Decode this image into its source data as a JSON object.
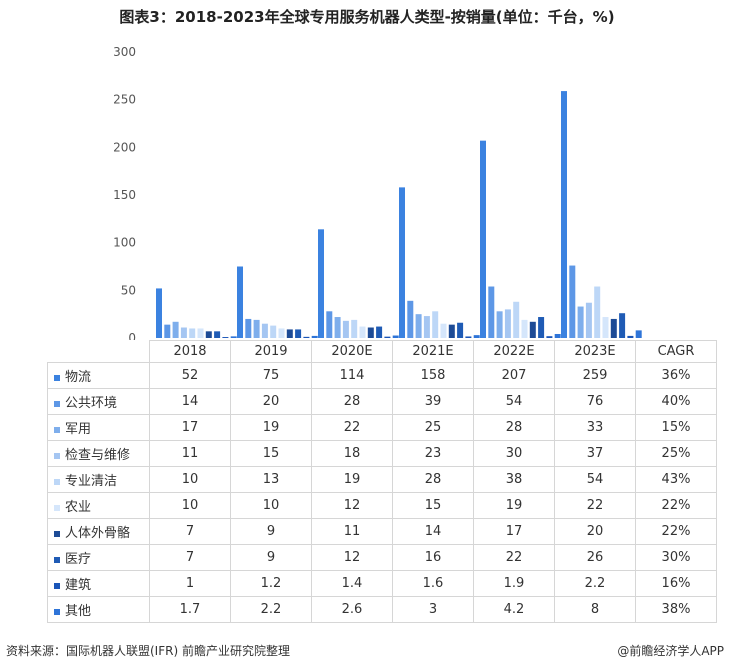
{
  "title": "图表3：2018-2023年全球专用服务机器人类型-按销量(单位：千台，%)",
  "footer": {
    "source": "资料来源：国际机器人联盟(IFR)  前瞻产业研究院整理",
    "credit": "@前瞻经济学人APP"
  },
  "chart_data": {
    "type": "bar",
    "title": "图表3：2018-2023年全球专用服务机器人类型-按销量(单位：千台，%)",
    "categories": [
      "2018",
      "2019",
      "2020E",
      "2021E",
      "2022E",
      "2023E"
    ],
    "extra_column_header": "CAGR",
    "ylim": [
      0,
      300
    ],
    "yticks": [
      0,
      50,
      100,
      150,
      200,
      250,
      300
    ],
    "grid": false,
    "legend": "table-left",
    "series": [
      {
        "name": "物流",
        "color": "#3b82e0",
        "values": [
          52,
          75,
          114,
          158,
          207,
          259
        ],
        "cagr": "36%"
      },
      {
        "name": "公共环境",
        "color": "#5d97e6",
        "values": [
          14,
          20,
          28,
          39,
          54,
          76
        ],
        "cagr": "40%"
      },
      {
        "name": "军用",
        "color": "#7eaeec",
        "values": [
          17,
          19,
          22,
          25,
          28,
          33
        ],
        "cagr": "15%"
      },
      {
        "name": "检查与维修",
        "color": "#a5c6f2",
        "values": [
          11,
          15,
          18,
          23,
          30,
          37
        ],
        "cagr": "25%"
      },
      {
        "name": "专业清洁",
        "color": "#bdd7f7",
        "values": [
          10,
          13,
          19,
          28,
          38,
          54
        ],
        "cagr": "43%"
      },
      {
        "name": "农业",
        "color": "#d5e6fb",
        "values": [
          10,
          10,
          12,
          15,
          19,
          22
        ],
        "cagr": "22%"
      },
      {
        "name": "人体外骨骼",
        "color": "#1d4b96",
        "values": [
          7,
          9,
          11,
          14,
          17,
          20
        ],
        "cagr": "22%"
      },
      {
        "name": "医疗",
        "color": "#1f5bb5",
        "values": [
          7,
          9,
          12,
          16,
          22,
          26
        ],
        "cagr": "30%"
      },
      {
        "name": "建筑",
        "color": "#1a55b8",
        "values": [
          1,
          1.2,
          1.4,
          1.6,
          1.9,
          2.2
        ],
        "cagr": "16%"
      },
      {
        "name": "其他",
        "color": "#2e74d8",
        "values": [
          1.7,
          2.2,
          2.6,
          3,
          4.2,
          8
        ],
        "cagr": "38%"
      }
    ]
  }
}
